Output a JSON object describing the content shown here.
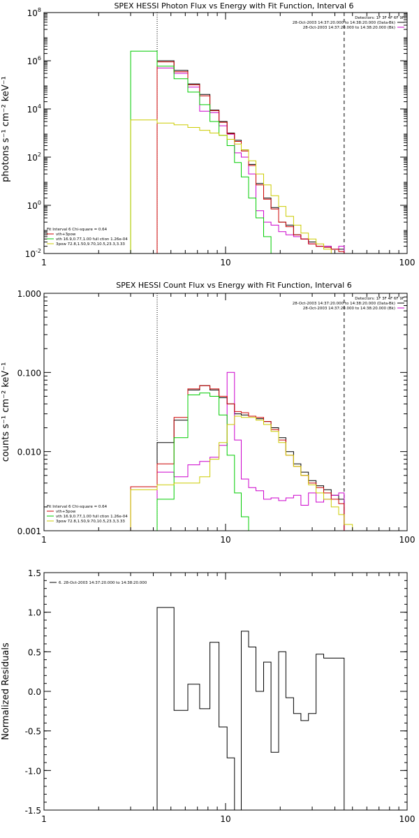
{
  "chart_data": [
    {
      "type": "line",
      "title": "SPEX HESSI Photon Flux vs Energy with Fit Function, Interval 6",
      "ylabel": "photons s⁻¹ cm⁻² keV⁻¹",
      "xlabel": "",
      "xscale": "log",
      "yscale": "log",
      "xlim": [
        1,
        100
      ],
      "ylim": [
        0.01,
        100000000
      ],
      "xticks": [
        "1",
        "10",
        "100"
      ],
      "yticks": [
        {
          "v": 0.01,
          "b": "10",
          "e": "-2"
        },
        {
          "v": 1,
          "b": "10",
          "e": "0"
        },
        {
          "v": 100,
          "b": "10",
          "e": "2"
        },
        {
          "v": 10000,
          "b": "10",
          "e": "4"
        },
        {
          "v": 1000000,
          "b": "10",
          "e": "6"
        },
        {
          "v": 100000000,
          "b": "10",
          "e": "8"
        }
      ],
      "vlines": [
        {
          "x": 4.2,
          "style": "dotted"
        },
        {
          "x": 45,
          "style": "dashed"
        }
      ],
      "legend_top": {
        "header": "Detectors: 1F 3F 4F 6F 9F",
        "items": [
          {
            "text": "28-Oct-2003 14:37:20.000 to 14:38:20.000 (Data-Bk)",
            "color": "#000000"
          },
          {
            "text": "28-Oct-2003 14:37:20.000 to 14:38:20.000 (Bk)",
            "color": "#cc00cc"
          }
        ]
      },
      "legend_bottom": {
        "header": "Fit Interval 6   Chi-square = 0.64",
        "items": [
          {
            "text": "vth+3pow",
            "color": "#cc0000"
          },
          {
            "text": "vth 16.9,0.77,1.00  full ction 1.26e-04",
            "color": "#00cc00"
          },
          {
            "text": "3pow 72.8,1.50,9.70,10.5,23.3,3.33",
            "color": "#cccc00"
          }
        ]
      },
      "edges": [
        3,
        4.2,
        5.2,
        6.2,
        7.2,
        8.2,
        9.2,
        10.2,
        11.2,
        12.2,
        13.4,
        14.7,
        16.2,
        17.8,
        19.6,
        21.5,
        23.7,
        26.0,
        28.6,
        31.5,
        34.7,
        38.2,
        42.0,
        45.0
      ],
      "series": [
        {
          "name": "data",
          "color": "#000000",
          "values": [
            null,
            1000000,
            400000,
            110000,
            40000,
            9000,
            3000,
            1000,
            500,
            200,
            50,
            8,
            2,
            0.8,
            0.2,
            0.15,
            0.06,
            0.04,
            0.03,
            0.02,
            0.02,
            0.015,
            0.015
          ]
        },
        {
          "name": "bk",
          "color": "#cc00cc",
          "values": [
            null,
            500000,
            300000,
            80000,
            8000,
            7000,
            2000,
            900,
            150,
            100,
            20,
            0.6,
            0.2,
            0.15,
            0.08,
            0.06,
            0.05,
            0.04,
            0.025,
            0.02,
            0.02,
            0.015,
            0.02
          ]
        },
        {
          "name": "vth+3pow",
          "color": "#cc0000",
          "values": [
            null,
            900000,
            350000,
            100000,
            35000,
            8500,
            2800,
            950,
            450,
            180,
            45,
            7,
            1.8,
            0.7,
            0.2,
            0.13,
            0.06,
            0.04,
            0.025,
            0.02,
            0.018,
            0.015,
            0.012
          ]
        },
        {
          "name": "vth",
          "color": "#00cc00",
          "values": [
            2500000,
            600000,
            180000,
            50000,
            15000,
            3000,
            800,
            300,
            60,
            15,
            2,
            0.3,
            0.05,
            0.01,
            null,
            null,
            null,
            null,
            null,
            null,
            null,
            null,
            null
          ]
        },
        {
          "name": "3pow",
          "color": "#cccc00",
          "values": [
            3500,
            2600,
            2200,
            1700,
            1300,
            1000,
            800,
            550,
            350,
            200,
            70,
            20,
            7,
            2.5,
            0.9,
            0.35,
            0.15,
            0.07,
            0.04,
            0.025,
            0.015,
            0.01,
            0.008
          ]
        }
      ]
    },
    {
      "type": "line",
      "title": "SPEX HESSI Count Flux vs Energy with Fit Function, Interval 6",
      "ylabel": "counts s⁻¹ cm⁻² keV⁻¹",
      "xlabel": "",
      "xscale": "log",
      "yscale": "log",
      "xlim": [
        1,
        100
      ],
      "ylim": [
        0.001,
        1
      ],
      "xticks": [
        "1",
        "10",
        "100"
      ],
      "yticks": [
        {
          "v": 0.001,
          "t": "0.001"
        },
        {
          "v": 0.01,
          "t": "0.010"
        },
        {
          "v": 0.1,
          "t": "0.100"
        },
        {
          "v": 1,
          "t": "1.000"
        }
      ],
      "vlines": [
        {
          "x": 4.2,
          "style": "dotted"
        },
        {
          "x": 45,
          "style": "dashed"
        }
      ],
      "legend_top": {
        "header": "Detectors: 1F 3F 4F 6F 9F",
        "items": [
          {
            "text": "28-Oct-2003 14:37:20.000 to 14:38:20.000 (Data-Bk)",
            "color": "#000000"
          },
          {
            "text": "28-Oct-2003 14:37:20.000 to 14:38:20.000 (Bk)",
            "color": "#cc00cc"
          }
        ]
      },
      "legend_bottom": {
        "header": "Fit Interval 6   Chi-square = 0.64",
        "items": [
          {
            "text": "vth+3pow",
            "color": "#cc0000"
          },
          {
            "text": "vth 16.9,0.77,1.00  full ction 1.26e-04",
            "color": "#00cc00"
          },
          {
            "text": "3pow 72.8,1.50,9.70,10.5,23.3,3.33",
            "color": "#cccc00"
          }
        ]
      },
      "edges": [
        3,
        4.2,
        5.2,
        6.2,
        7.2,
        8.2,
        9.2,
        10.2,
        11.2,
        12.2,
        13.4,
        14.7,
        16.2,
        17.8,
        19.6,
        21.5,
        23.7,
        26.0,
        28.6,
        31.5,
        34.7,
        38.2,
        42.0,
        45.0,
        50.0
      ],
      "series": [
        {
          "name": "data",
          "color": "#000000",
          "values": [
            null,
            0.013,
            0.025,
            0.06,
            0.068,
            0.06,
            0.048,
            0.04,
            0.03,
            0.029,
            0.028,
            0.026,
            0.024,
            0.02,
            0.015,
            0.01,
            0.007,
            0.0055,
            0.0043,
            0.0037,
            0.0033,
            0.0028,
            0.0025,
            null
          ]
        },
        {
          "name": "bk",
          "color": "#cc00cc",
          "values": [
            null,
            0.0055,
            0.0048,
            0.0068,
            0.0075,
            0.0085,
            0.012,
            0.1,
            0.014,
            0.0045,
            0.0035,
            0.0032,
            0.0025,
            0.0026,
            0.0024,
            0.0026,
            0.0028,
            0.0021,
            0.003,
            0.0023,
            0.0025,
            0.0028,
            0.003,
            null
          ]
        },
        {
          "name": "vth+3pow",
          "color": "#cc0000",
          "values": [
            0.0036,
            0.007,
            0.027,
            0.062,
            0.068,
            0.062,
            0.05,
            0.04,
            0.032,
            0.031,
            0.028,
            0.027,
            0.024,
            0.019,
            0.014,
            0.009,
            0.0065,
            0.005,
            0.004,
            0.0035,
            0.003,
            0.0025,
            0.0022,
            null
          ]
        },
        {
          "name": "vth",
          "color": "#00cc00",
          "values": [
            null,
            0.0025,
            0.015,
            0.052,
            0.055,
            0.05,
            0.029,
            0.009,
            0.003,
            0.0015,
            0.001,
            null,
            null,
            null,
            null,
            null,
            null,
            null,
            null,
            null,
            null,
            null,
            null,
            null
          ]
        },
        {
          "name": "3pow",
          "color": "#cccc00",
          "values": [
            0.0033,
            0.0038,
            0.004,
            0.004,
            0.0048,
            0.008,
            0.013,
            0.022,
            0.028,
            0.027,
            0.027,
            0.025,
            0.022,
            0.018,
            0.013,
            0.009,
            0.0065,
            0.005,
            0.0038,
            0.003,
            0.0025,
            0.002,
            0.0016,
            0.0012
          ]
        }
      ]
    },
    {
      "type": "line",
      "title": "",
      "ylabel": "Normalized Residuals",
      "xlabel": "",
      "xscale": "log",
      "yscale": "linear",
      "xlim": [
        1,
        100
      ],
      "ylim": [
        -1.5,
        1.5
      ],
      "xticks": [
        "1",
        "10",
        "100"
      ],
      "yticks": [
        {
          "v": 1.5,
          "t": "1.5"
        },
        {
          "v": 1.0,
          "t": "1.0"
        },
        {
          "v": 0.5,
          "t": "0.5"
        },
        {
          "v": 0.0,
          "t": "0.0"
        },
        {
          "v": -0.5,
          "t": "-0.5"
        },
        {
          "v": -1.0,
          "t": "-1.0"
        },
        {
          "v": -1.5,
          "t": "-1.5"
        }
      ],
      "legend_top_left": {
        "items": [
          {
            "text": "6. 28-Oct-2003 14:37:20.000 to 14:38:20.000",
            "color": "#000000"
          }
        ]
      },
      "edges": [
        4.2,
        5.2,
        6.2,
        7.2,
        8.2,
        9.2,
        10.2,
        11.2,
        12.2,
        13.4,
        14.7,
        16.2,
        17.8,
        19.6,
        21.5,
        23.7,
        26.0,
        28.6,
        31.5,
        34.7,
        38.2,
        42.0,
        45.0
      ],
      "series": [
        {
          "name": "residuals",
          "color": "#000000",
          "values": [
            1.06,
            -0.24,
            0.09,
            -0.22,
            0.62,
            -0.45,
            -0.84,
            -1.52,
            0.76,
            0.56,
            0.0,
            0.37,
            -0.77,
            0.5,
            -0.08,
            -0.28,
            -0.37,
            -0.28,
            0.47,
            0.42,
            0.42,
            0.42
          ]
        }
      ]
    }
  ],
  "colors": {
    "data": "#000000",
    "bk": "#cc00cc",
    "fit": "#cc0000",
    "vth": "#00cc00",
    "pow": "#cccc00"
  }
}
